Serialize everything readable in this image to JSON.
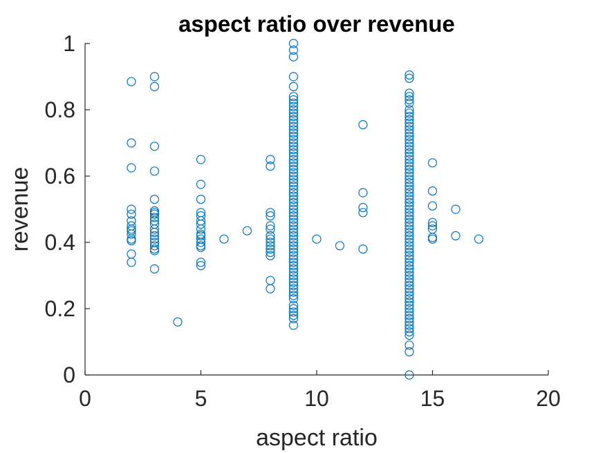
{
  "chart_data": {
    "type": "scatter",
    "title": "aspect ratio over revenue",
    "xlabel": "aspect ratio",
    "ylabel": "revenue",
    "xlim": [
      0,
      20
    ],
    "ylim": [
      0,
      1
    ],
    "x_ticks": [
      0,
      5,
      10,
      15,
      20
    ],
    "y_ticks": [
      0,
      0.2,
      0.4,
      0.6,
      0.8,
      1
    ],
    "x_tick_labels": [
      "0",
      "5",
      "10",
      "15",
      "20"
    ],
    "y_tick_labels": [
      "0",
      "0.2",
      "0.4",
      "0.6",
      "0.8",
      "1"
    ],
    "grid": false,
    "marker": "open-circle",
    "marker_color": "#0072BD",
    "series": [
      {
        "points": [
          [
            2,
            0.885
          ],
          [
            2,
            0.7
          ],
          [
            2,
            0.625
          ],
          [
            2,
            0.5
          ],
          [
            2,
            0.485
          ],
          [
            2,
            0.465
          ],
          [
            2,
            0.45
          ],
          [
            2,
            0.44
          ],
          [
            2,
            0.435
          ],
          [
            2,
            0.425
          ],
          [
            2,
            0.41
          ],
          [
            2,
            0.405
          ],
          [
            2,
            0.365
          ],
          [
            2,
            0.34
          ],
          [
            3,
            0.9
          ],
          [
            3,
            0.87
          ],
          [
            3,
            0.69
          ],
          [
            3,
            0.615
          ],
          [
            3,
            0.53
          ],
          [
            3,
            0.495
          ],
          [
            3,
            0.49
          ],
          [
            3,
            0.485
          ],
          [
            3,
            0.475
          ],
          [
            3,
            0.465
          ],
          [
            3,
            0.455
          ],
          [
            3,
            0.44
          ],
          [
            3,
            0.43
          ],
          [
            3,
            0.42
          ],
          [
            3,
            0.41
          ],
          [
            3,
            0.4
          ],
          [
            3,
            0.39
          ],
          [
            3,
            0.38
          ],
          [
            3,
            0.375
          ],
          [
            3,
            0.32
          ],
          [
            4,
            0.16
          ],
          [
            5,
            0.65
          ],
          [
            5,
            0.575
          ],
          [
            5,
            0.53
          ],
          [
            5,
            0.49
          ],
          [
            5,
            0.48
          ],
          [
            5,
            0.465
          ],
          [
            5,
            0.455
          ],
          [
            5,
            0.44
          ],
          [
            5,
            0.425
          ],
          [
            5,
            0.42
          ],
          [
            5,
            0.41
          ],
          [
            5,
            0.4
          ],
          [
            5,
            0.39
          ],
          [
            5,
            0.385
          ],
          [
            5,
            0.34
          ],
          [
            5,
            0.33
          ],
          [
            6,
            0.41
          ],
          [
            7,
            0.435
          ],
          [
            8,
            0.65
          ],
          [
            8,
            0.63
          ],
          [
            8,
            0.49
          ],
          [
            8,
            0.48
          ],
          [
            8,
            0.45
          ],
          [
            8,
            0.44
          ],
          [
            8,
            0.42
          ],
          [
            8,
            0.41
          ],
          [
            8,
            0.4
          ],
          [
            8,
            0.39
          ],
          [
            8,
            0.38
          ],
          [
            8,
            0.37
          ],
          [
            8,
            0.36
          ],
          [
            8,
            0.285
          ],
          [
            8,
            0.26
          ],
          [
            9,
            1.0
          ],
          [
            9,
            0.98
          ],
          [
            9,
            0.96
          ],
          [
            9,
            0.9
          ],
          [
            9,
            0.87
          ],
          [
            9,
            0.84
          ],
          [
            9,
            0.83
          ],
          [
            9,
            0.82
          ],
          [
            9,
            0.81
          ],
          [
            9,
            0.8
          ],
          [
            9,
            0.79
          ],
          [
            9,
            0.78
          ],
          [
            9,
            0.77
          ],
          [
            9,
            0.76
          ],
          [
            9,
            0.75
          ],
          [
            9,
            0.74
          ],
          [
            9,
            0.73
          ],
          [
            9,
            0.72
          ],
          [
            9,
            0.71
          ],
          [
            9,
            0.7
          ],
          [
            9,
            0.69
          ],
          [
            9,
            0.68
          ],
          [
            9,
            0.67
          ],
          [
            9,
            0.66
          ],
          [
            9,
            0.65
          ],
          [
            9,
            0.64
          ],
          [
            9,
            0.63
          ],
          [
            9,
            0.62
          ],
          [
            9,
            0.61
          ],
          [
            9,
            0.6
          ],
          [
            9,
            0.59
          ],
          [
            9,
            0.58
          ],
          [
            9,
            0.57
          ],
          [
            9,
            0.56
          ],
          [
            9,
            0.55
          ],
          [
            9,
            0.54
          ],
          [
            9,
            0.53
          ],
          [
            9,
            0.52
          ],
          [
            9,
            0.51
          ],
          [
            9,
            0.5
          ],
          [
            9,
            0.49
          ],
          [
            9,
            0.48
          ],
          [
            9,
            0.47
          ],
          [
            9,
            0.46
          ],
          [
            9,
            0.45
          ],
          [
            9,
            0.44
          ],
          [
            9,
            0.43
          ],
          [
            9,
            0.42
          ],
          [
            9,
            0.41
          ],
          [
            9,
            0.4
          ],
          [
            9,
            0.39
          ],
          [
            9,
            0.38
          ],
          [
            9,
            0.37
          ],
          [
            9,
            0.36
          ],
          [
            9,
            0.35
          ],
          [
            9,
            0.34
          ],
          [
            9,
            0.33
          ],
          [
            9,
            0.32
          ],
          [
            9,
            0.31
          ],
          [
            9,
            0.3
          ],
          [
            9,
            0.29
          ],
          [
            9,
            0.28
          ],
          [
            9,
            0.27
          ],
          [
            9,
            0.26
          ],
          [
            9,
            0.25
          ],
          [
            9,
            0.24
          ],
          [
            9,
            0.23
          ],
          [
            9,
            0.21
          ],
          [
            9,
            0.2
          ],
          [
            9,
            0.19
          ],
          [
            9,
            0.18
          ],
          [
            9,
            0.17
          ],
          [
            9,
            0.15
          ],
          [
            10,
            0.41
          ],
          [
            11,
            0.39
          ],
          [
            12,
            0.755
          ],
          [
            12,
            0.55
          ],
          [
            12,
            0.505
          ],
          [
            12,
            0.49
          ],
          [
            12,
            0.38
          ],
          [
            14,
            0.905
          ],
          [
            14,
            0.895
          ],
          [
            14,
            0.85
          ],
          [
            14,
            0.84
          ],
          [
            14,
            0.83
          ],
          [
            14,
            0.82
          ],
          [
            14,
            0.8
          ],
          [
            14,
            0.79
          ],
          [
            14,
            0.78
          ],
          [
            14,
            0.77
          ],
          [
            14,
            0.76
          ],
          [
            14,
            0.75
          ],
          [
            14,
            0.74
          ],
          [
            14,
            0.73
          ],
          [
            14,
            0.72
          ],
          [
            14,
            0.71
          ],
          [
            14,
            0.7
          ],
          [
            14,
            0.69
          ],
          [
            14,
            0.68
          ],
          [
            14,
            0.67
          ],
          [
            14,
            0.66
          ],
          [
            14,
            0.65
          ],
          [
            14,
            0.64
          ],
          [
            14,
            0.63
          ],
          [
            14,
            0.62
          ],
          [
            14,
            0.61
          ],
          [
            14,
            0.6
          ],
          [
            14,
            0.59
          ],
          [
            14,
            0.58
          ],
          [
            14,
            0.57
          ],
          [
            14,
            0.56
          ],
          [
            14,
            0.55
          ],
          [
            14,
            0.54
          ],
          [
            14,
            0.53
          ],
          [
            14,
            0.52
          ],
          [
            14,
            0.51
          ],
          [
            14,
            0.5
          ],
          [
            14,
            0.49
          ],
          [
            14,
            0.48
          ],
          [
            14,
            0.47
          ],
          [
            14,
            0.46
          ],
          [
            14,
            0.45
          ],
          [
            14,
            0.44
          ],
          [
            14,
            0.43
          ],
          [
            14,
            0.42
          ],
          [
            14,
            0.41
          ],
          [
            14,
            0.4
          ],
          [
            14,
            0.39
          ],
          [
            14,
            0.38
          ],
          [
            14,
            0.37
          ],
          [
            14,
            0.36
          ],
          [
            14,
            0.35
          ],
          [
            14,
            0.34
          ],
          [
            14,
            0.33
          ],
          [
            14,
            0.32
          ],
          [
            14,
            0.31
          ],
          [
            14,
            0.3
          ],
          [
            14,
            0.29
          ],
          [
            14,
            0.28
          ],
          [
            14,
            0.27
          ],
          [
            14,
            0.26
          ],
          [
            14,
            0.25
          ],
          [
            14,
            0.24
          ],
          [
            14,
            0.23
          ],
          [
            14,
            0.22
          ],
          [
            14,
            0.21
          ],
          [
            14,
            0.2
          ],
          [
            14,
            0.19
          ],
          [
            14,
            0.18
          ],
          [
            14,
            0.17
          ],
          [
            14,
            0.16
          ],
          [
            14,
            0.15
          ],
          [
            14,
            0.14
          ],
          [
            14,
            0.13
          ],
          [
            14,
            0.12
          ],
          [
            14,
            0.09
          ],
          [
            14,
            0.07
          ],
          [
            14,
            0.0
          ],
          [
            15,
            0.64
          ],
          [
            15,
            0.555
          ],
          [
            15,
            0.51
          ],
          [
            15,
            0.46
          ],
          [
            15,
            0.45
          ],
          [
            15,
            0.44
          ],
          [
            15,
            0.415
          ],
          [
            15,
            0.41
          ],
          [
            16,
            0.5
          ],
          [
            16,
            0.42
          ],
          [
            17,
            0.41
          ]
        ]
      }
    ]
  }
}
